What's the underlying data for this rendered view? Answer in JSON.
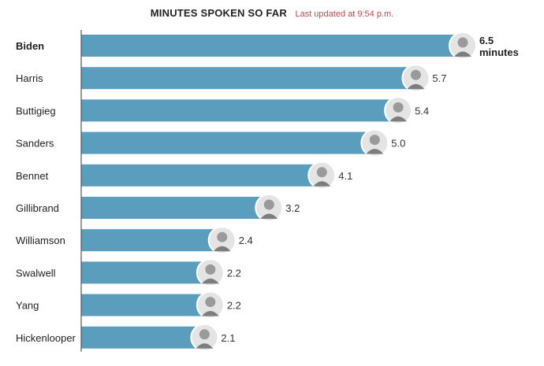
{
  "chart_data": {
    "type": "bar",
    "orientation": "horizontal",
    "title": "MINUTES SPOKEN SO FAR",
    "subtitle": "Last updated at 9:54 p.m.",
    "categories": [
      "Biden",
      "Harris",
      "Buttigieg",
      "Sanders",
      "Bennet",
      "Gillibrand",
      "Williamson",
      "Swalwell",
      "Yang",
      "Hickenlooper"
    ],
    "values": [
      6.5,
      5.7,
      5.4,
      5.0,
      4.1,
      3.2,
      2.4,
      2.2,
      2.2,
      2.1
    ],
    "value_labels": [
      "6.5",
      "5.7",
      "5.4",
      "5.0",
      "4.1",
      "3.2",
      "2.4",
      "2.2",
      "2.2",
      "2.1"
    ],
    "first_value_unit": "minutes",
    "highlight_category": "Biden",
    "xlim": [
      0,
      6.5
    ],
    "grid": false,
    "bar_color": "#5b9dbd",
    "subtitle_color": "#c8464a"
  }
}
